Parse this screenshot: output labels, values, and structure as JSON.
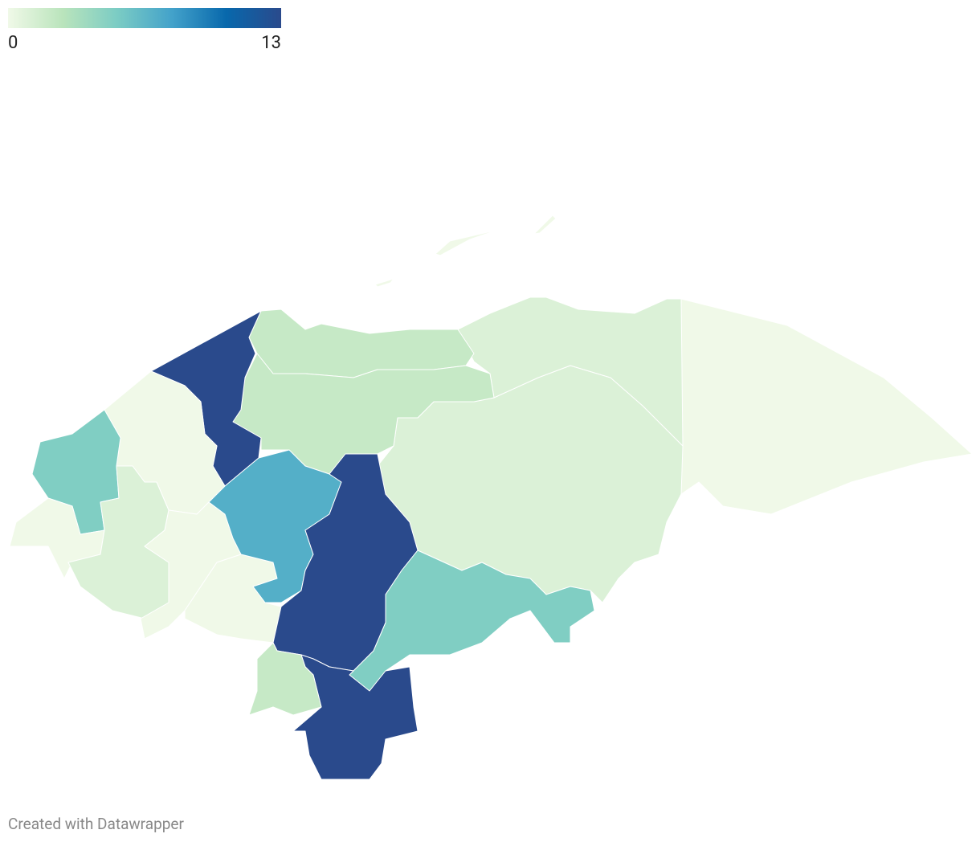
{
  "legend": {
    "min": 0,
    "max": 13,
    "colors": [
      "#f0f9e8",
      "#bae4bc",
      "#7bccc4",
      "#43a2ca",
      "#0868ac",
      "#2a4a8c"
    ]
  },
  "regions": {
    "values": [
      0,
      1,
      1,
      2,
      2,
      13,
      0,
      5,
      0,
      1,
      0,
      0,
      7,
      13,
      5,
      13,
      2,
      0
    ]
  },
  "footer": "Created with Datawrapper"
}
